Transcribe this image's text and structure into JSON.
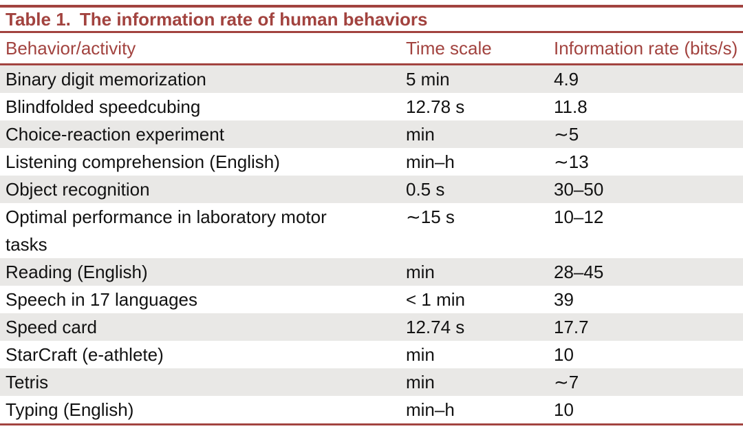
{
  "page": {
    "title_label": "Table 1.",
    "title_text": "The information rate of human behaviors"
  },
  "table": {
    "columns": [
      {
        "key": "behavior",
        "label": "Behavior/activity"
      },
      {
        "key": "time_scale",
        "label": "Time scale"
      },
      {
        "key": "rate",
        "label": "Information rate (bits/s)"
      }
    ],
    "rows": [
      {
        "behavior": "Binary digit memorization",
        "time_scale": "5 min",
        "rate": "4.9"
      },
      {
        "behavior": "Blindfolded speedcubing",
        "time_scale": "12.78 s",
        "rate": "11.8"
      },
      {
        "behavior": "Choice-reaction experiment",
        "time_scale": "min",
        "rate": "∼5"
      },
      {
        "behavior": "Listening comprehension (English)",
        "time_scale": "min–h",
        "rate": "∼13"
      },
      {
        "behavior": "Object recognition",
        "time_scale": "0.5 s",
        "rate": "30–50"
      },
      {
        "behavior": "Optimal performance in laboratory motor tasks",
        "time_scale": "∼15 s",
        "rate": "10–12"
      },
      {
        "behavior": "Reading (English)",
        "time_scale": "min",
        "rate": "28–45"
      },
      {
        "behavior": "Speech in 17 languages",
        "time_scale": "< 1 min",
        "rate": "39"
      },
      {
        "behavior": "Speed card",
        "time_scale": "12.74 s",
        "rate": "17.7"
      },
      {
        "behavior": "StarCraft (e-athlete)",
        "time_scale": "min",
        "rate": "10"
      },
      {
        "behavior": "Tetris",
        "time_scale": "min",
        "rate": "∼7"
      },
      {
        "behavior": "Typing (English)",
        "time_scale": "min–h",
        "rate": "10"
      }
    ]
  },
  "colors": {
    "accent": "#a2433f",
    "row_shade": "#e9e8e6",
    "body_text": "#121212",
    "background": "#ffffff"
  }
}
